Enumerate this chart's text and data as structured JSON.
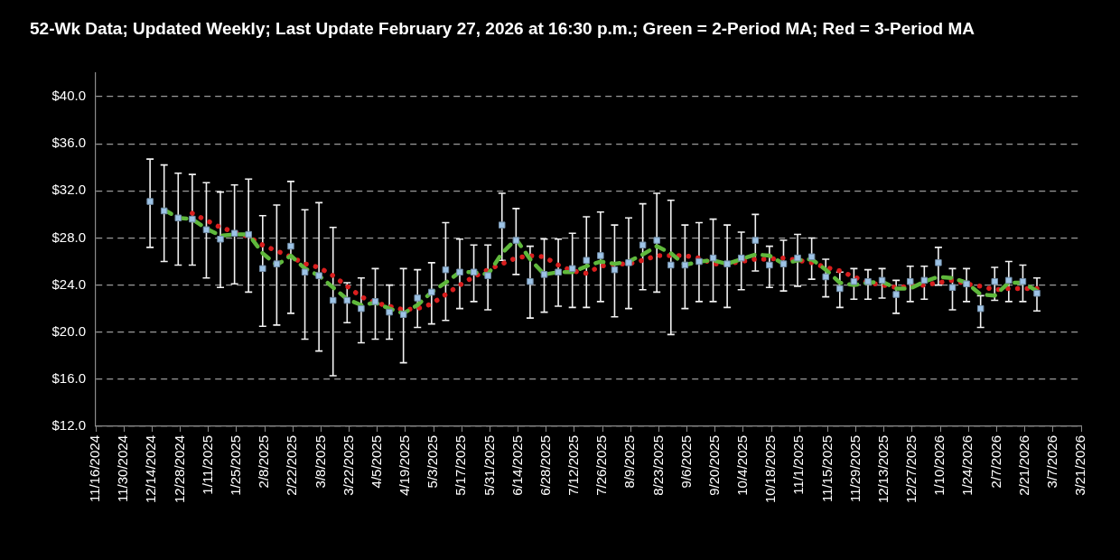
{
  "chart_data": {
    "type": "scatter",
    "title": "52-Wk Data; Updated Weekly; Last Update February 27, 2026 at 16:30 p.m.; Green = 2-Period MA; Red = 3-Period MA",
    "x": [
      "2024-12-13",
      "2024-12-20",
      "2024-12-27",
      "2025-01-03",
      "2025-01-10",
      "2025-01-17",
      "2025-01-24",
      "2025-01-31",
      "2025-02-07",
      "2025-02-14",
      "2025-02-21",
      "2025-02-28",
      "2025-03-07",
      "2025-03-14",
      "2025-03-21",
      "2025-03-28",
      "2025-04-04",
      "2025-04-11",
      "2025-04-18",
      "2025-04-25",
      "2025-05-02",
      "2025-05-09",
      "2025-05-16",
      "2025-05-23",
      "2025-05-30",
      "2025-06-06",
      "2025-06-13",
      "2025-06-20",
      "2025-06-27",
      "2025-07-04",
      "2025-07-11",
      "2025-07-18",
      "2025-07-25",
      "2025-08-01",
      "2025-08-08",
      "2025-08-15",
      "2025-08-22",
      "2025-08-29",
      "2025-09-05",
      "2025-09-12",
      "2025-09-19",
      "2025-09-26",
      "2025-10-03",
      "2025-10-10",
      "2025-10-17",
      "2025-10-24",
      "2025-10-31",
      "2025-11-07",
      "2025-11-14",
      "2025-11-21",
      "2025-11-28",
      "2025-12-05",
      "2025-12-12",
      "2025-12-19",
      "2025-12-26",
      "2026-01-02",
      "2026-01-09",
      "2026-01-16",
      "2026-01-23",
      "2026-01-30",
      "2026-02-06",
      "2026-02-13",
      "2026-02-20",
      "2026-02-27"
    ],
    "xlim": [
      "2024-11-16",
      "2026-03-21"
    ],
    "xticks": [
      {
        "value": "2024-11-16",
        "label": "11/16/2024"
      },
      {
        "value": "2024-11-30",
        "label": "11/30/2024"
      },
      {
        "value": "2024-12-14",
        "label": "12/14/2024"
      },
      {
        "value": "2024-12-28",
        "label": "12/28/2024"
      },
      {
        "value": "2025-01-11",
        "label": "1/11/2025"
      },
      {
        "value": "2025-01-25",
        "label": "1/25/2025"
      },
      {
        "value": "2025-02-08",
        "label": "2/8/2025"
      },
      {
        "value": "2025-02-22",
        "label": "2/22/2025"
      },
      {
        "value": "2025-03-08",
        "label": "3/8/2025"
      },
      {
        "value": "2025-03-22",
        "label": "3/22/2025"
      },
      {
        "value": "2025-04-05",
        "label": "4/5/2025"
      },
      {
        "value": "2025-04-19",
        "label": "4/19/2025"
      },
      {
        "value": "2025-05-03",
        "label": "5/3/2025"
      },
      {
        "value": "2025-05-17",
        "label": "5/17/2025"
      },
      {
        "value": "2025-05-31",
        "label": "5/31/2025"
      },
      {
        "value": "2025-06-14",
        "label": "6/14/2025"
      },
      {
        "value": "2025-06-28",
        "label": "6/28/2025"
      },
      {
        "value": "2025-07-12",
        "label": "7/12/2025"
      },
      {
        "value": "2025-07-26",
        "label": "7/26/2025"
      },
      {
        "value": "2025-08-09",
        "label": "8/9/2025"
      },
      {
        "value": "2025-08-23",
        "label": "8/23/2025"
      },
      {
        "value": "2025-09-06",
        "label": "9/6/2025"
      },
      {
        "value": "2025-09-20",
        "label": "9/20/2025"
      },
      {
        "value": "2025-10-04",
        "label": "10/4/2025"
      },
      {
        "value": "2025-10-18",
        "label": "10/18/2025"
      },
      {
        "value": "2025-11-01",
        "label": "11/1/2025"
      },
      {
        "value": "2025-11-15",
        "label": "11/15/2025"
      },
      {
        "value": "2025-11-29",
        "label": "11/29/2025"
      },
      {
        "value": "2025-12-13",
        "label": "12/13/2025"
      },
      {
        "value": "2025-12-27",
        "label": "12/27/2025"
      },
      {
        "value": "2026-01-10",
        "label": "1/10/2026"
      },
      {
        "value": "2026-01-24",
        "label": "1/24/2026"
      },
      {
        "value": "2026-02-07",
        "label": "2/7/2026"
      },
      {
        "value": "2026-02-21",
        "label": "2/21/2026"
      },
      {
        "value": "2026-03-07",
        "label": "3/7/2026"
      },
      {
        "value": "2026-03-21",
        "label": "3/21/2026"
      }
    ],
    "ylim": [
      12,
      42
    ],
    "yticks": [
      {
        "value": 12,
        "label": "$12.0"
      },
      {
        "value": 16,
        "label": "$16.0"
      },
      {
        "value": 20,
        "label": "$20.0"
      },
      {
        "value": 24,
        "label": "$24.0"
      },
      {
        "value": 28,
        "label": "$28.0"
      },
      {
        "value": 32,
        "label": "$32.0"
      },
      {
        "value": 36,
        "label": "$36.0"
      },
      {
        "value": 40,
        "label": "$40.0"
      }
    ],
    "grid": "y",
    "series": [
      {
        "type": "scatter",
        "color": "#9dc3e6",
        "marker": "square",
        "values": [
          31.1,
          30.3,
          29.7,
          29.6,
          28.7,
          27.9,
          28.4,
          28.3,
          25.4,
          25.8,
          27.3,
          25.1,
          24.8,
          22.7,
          22.7,
          22.0,
          22.6,
          21.7,
          21.5,
          22.9,
          23.4,
          25.3,
          25.1,
          25.1,
          24.8,
          29.1,
          27.8,
          24.3,
          24.9,
          25.1,
          25.4,
          26.1,
          26.5,
          25.3,
          25.9,
          27.4,
          27.8,
          25.7,
          25.7,
          26.0,
          26.3,
          25.8,
          26.3,
          27.8,
          25.7,
          25.8,
          26.3,
          26.4,
          24.7,
          23.7,
          24.3,
          24.3,
          24.4,
          23.2,
          24.3,
          24.4,
          25.9,
          23.8,
          24.1,
          22.0,
          24.3,
          24.4,
          24.3,
          23.3
        ],
        "errors": [
          [
            27.2,
            34.7
          ],
          [
            26.0,
            34.2
          ],
          [
            25.7,
            33.5
          ],
          [
            25.7,
            33.4
          ],
          [
            24.6,
            32.7
          ],
          [
            23.8,
            31.9
          ],
          [
            24.1,
            32.5
          ],
          [
            23.4,
            33.0
          ],
          [
            20.5,
            29.9
          ],
          [
            20.6,
            30.8
          ],
          [
            21.6,
            32.8
          ],
          [
            19.4,
            30.4
          ],
          [
            18.4,
            31.0
          ],
          [
            16.3,
            28.9
          ],
          [
            20.8,
            24.2
          ],
          [
            19.1,
            24.6
          ],
          [
            19.4,
            25.4
          ],
          [
            19.4,
            24.0
          ],
          [
            17.4,
            25.4
          ],
          [
            20.4,
            25.3
          ],
          [
            20.7,
            25.9
          ],
          [
            21.0,
            29.3
          ],
          [
            22.0,
            27.9
          ],
          [
            22.6,
            27.4
          ],
          [
            21.9,
            27.4
          ],
          [
            26.1,
            31.8
          ],
          [
            24.9,
            30.5
          ],
          [
            21.2,
            27.3
          ],
          [
            21.7,
            27.9
          ],
          [
            22.2,
            27.9
          ],
          [
            22.1,
            28.4
          ],
          [
            22.1,
            29.8
          ],
          [
            22.6,
            30.2
          ],
          [
            21.3,
            29.1
          ],
          [
            22.0,
            29.7
          ],
          [
            23.6,
            30.9
          ],
          [
            23.4,
            31.8
          ],
          [
            19.8,
            31.2
          ],
          [
            22.0,
            29.1
          ],
          [
            22.6,
            29.3
          ],
          [
            22.6,
            29.6
          ],
          [
            22.1,
            29.1
          ],
          [
            23.6,
            28.5
          ],
          [
            25.2,
            30.0
          ],
          [
            23.8,
            27.3
          ],
          [
            23.5,
            27.8
          ],
          [
            23.9,
            28.3
          ],
          [
            24.5,
            28.0
          ],
          [
            23.0,
            26.2
          ],
          [
            22.1,
            25.1
          ],
          [
            22.8,
            25.4
          ],
          [
            22.8,
            25.3
          ],
          [
            22.9,
            25.4
          ],
          [
            21.6,
            24.4
          ],
          [
            22.6,
            25.6
          ],
          [
            22.8,
            25.6
          ],
          [
            24.0,
            27.2
          ],
          [
            21.9,
            25.4
          ],
          [
            22.6,
            25.4
          ],
          [
            20.4,
            23.1
          ],
          [
            22.7,
            25.5
          ],
          [
            22.6,
            26.0
          ],
          [
            22.6,
            25.7
          ],
          [
            21.8,
            24.6
          ]
        ]
      },
      {
        "type": "line",
        "color": "#5fb83c",
        "marker": "none",
        "line_style": "dashed",
        "values": [
          null,
          30.4,
          29.7,
          29.6,
          28.8,
          28.2,
          28.3,
          28.3,
          26.7,
          25.7,
          26.5,
          25.4,
          24.8,
          23.8,
          22.8,
          22.3,
          22.5,
          22.0,
          21.6,
          22.3,
          23.4,
          24.2,
          25.1,
          25.1,
          24.9,
          26.7,
          27.9,
          26.2,
          24.9,
          25.1,
          25.1,
          25.6,
          26.0,
          25.8,
          26.0,
          26.6,
          27.3,
          26.7,
          25.7,
          26.0,
          26.1,
          25.8,
          26.2,
          26.6,
          26.5,
          25.8,
          26.1,
          26.2,
          25.3,
          24.2,
          24.0,
          24.2,
          24.3,
          23.7,
          23.7,
          24.3,
          24.7,
          24.6,
          24.2,
          23.2,
          23.1,
          24.2,
          24.2,
          23.5
        ]
      },
      {
        "type": "line",
        "color": "#d81e1e",
        "marker": "none",
        "line_style": "dotted",
        "values": [
          null,
          null,
          null,
          30.1,
          29.5,
          28.9,
          28.5,
          28.1,
          27.4,
          26.9,
          26.4,
          25.8,
          25.5,
          24.8,
          23.9,
          23.0,
          22.5,
          22.2,
          21.9,
          22.0,
          22.4,
          23.2,
          24.0,
          24.7,
          25.3,
          25.8,
          26.3,
          26.5,
          26.4,
          25.7,
          25.2,
          25.0,
          25.6,
          25.8,
          25.8,
          26.1,
          26.5,
          26.5,
          26.5,
          26.3,
          25.8,
          25.8,
          26.0,
          26.2,
          26.2,
          26.3,
          26.1,
          25.9,
          25.5,
          25.2,
          24.7,
          24.2,
          24.0,
          23.8,
          23.9,
          24.0,
          24.2,
          24.4,
          24.1,
          23.9,
          23.6,
          23.7,
          23.7,
          23.7
        ]
      }
    ]
  }
}
